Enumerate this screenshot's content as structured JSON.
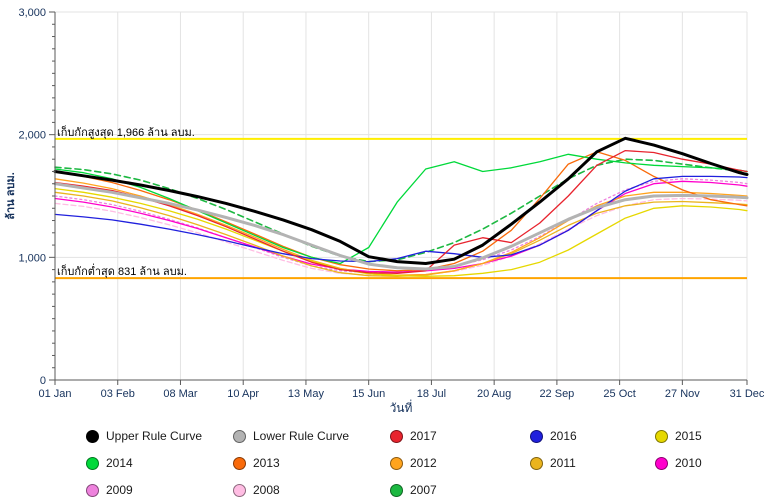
{
  "axis": {
    "tick_color": "#16325c",
    "title_color": "#16325c",
    "grid_color": "#e3e3e3",
    "axis_line_color": "#5a5a5a",
    "annotation_color": "#000000",
    "background": "#ffffff"
  },
  "chart_data": {
    "type": "line",
    "title": "",
    "xlabel": "วันที่",
    "ylabel": "ล้าน ลบม.",
    "ylim": [
      0,
      3000
    ],
    "grid": true,
    "legend_position": "bottom",
    "y_ticks": [
      {
        "v": 0,
        "label": "0"
      },
      {
        "v": 1000,
        "label": "1,000"
      },
      {
        "v": 2000,
        "label": "2,000"
      },
      {
        "v": 3000,
        "label": "3,000"
      }
    ],
    "x_tick_labels": [
      "01 Jan",
      "03 Feb",
      "08 Mar",
      "10 Apr",
      "13 May",
      "15 Jun",
      "18 Jul",
      "20 Aug",
      "22 Sep",
      "25 Oct",
      "27 Nov",
      "31 Dec"
    ],
    "x_tick_days": [
      1,
      34,
      67,
      100,
      133,
      166,
      199,
      232,
      265,
      298,
      331,
      365
    ],
    "reference_lines": [
      {
        "name": "max-storage",
        "value": 1966,
        "color": "#ffee00",
        "label": "เก็บกักสูงสุด 1,966 ล้าน ลบม."
      },
      {
        "name": "min-storage",
        "value": 831,
        "color": "#ffa400",
        "label": "เก็บกักต่ำสุด 831 ล้าน ลบม."
      }
    ],
    "x_days": [
      1,
      16,
      31,
      46,
      61,
      76,
      91,
      106,
      121,
      136,
      151,
      166,
      181,
      196,
      211,
      226,
      241,
      256,
      271,
      286,
      301,
      316,
      331,
      346,
      361,
      365
    ],
    "series": [
      {
        "name": "Upper Rule Curve",
        "color": "#000000",
        "width": 3,
        "dash": "",
        "values": [
          1700,
          1665,
          1630,
          1590,
          1545,
          1495,
          1440,
          1375,
          1305,
          1225,
          1130,
          1005,
          965,
          950,
          985,
          1100,
          1270,
          1450,
          1640,
          1860,
          1970,
          1915,
          1845,
          1765,
          1690,
          1675
        ]
      },
      {
        "name": "Lower Rule Curve",
        "color": "#b3b3b3",
        "width": 3,
        "dash": "",
        "values": [
          1600,
          1565,
          1530,
          1485,
          1440,
          1385,
          1325,
          1260,
          1185,
          1100,
          1015,
          945,
          915,
          905,
          925,
          995,
          1090,
          1200,
          1310,
          1405,
          1470,
          1500,
          1505,
          1500,
          1490,
          1485
        ]
      },
      {
        "name": "2017",
        "color": "#e8242e",
        "width": 1.3,
        "dash": "",
        "values": [
          1610,
          1580,
          1545,
          1490,
          1420,
          1340,
          1250,
          1150,
          1050,
          960,
          900,
          875,
          870,
          890,
          1100,
          1160,
          1120,
          1280,
          1500,
          1750,
          1870,
          1855,
          1800,
          1760,
          1710,
          1700
        ]
      },
      {
        "name": "2016",
        "color": "#2020dd",
        "width": 1.3,
        "dash": "",
        "values": [
          1350,
          1330,
          1305,
          1270,
          1230,
          1185,
          1135,
          1080,
          1030,
          990,
          970,
          965,
          990,
          1050,
          1030,
          1000,
          1020,
          1100,
          1220,
          1380,
          1540,
          1640,
          1660,
          1660,
          1655,
          1650
        ]
      },
      {
        "name": "2015",
        "color": "#e6d800",
        "width": 1.3,
        "dash": "",
        "values": [
          1560,
          1530,
          1490,
          1440,
          1380,
          1310,
          1230,
          1140,
          1050,
          970,
          905,
          865,
          850,
          845,
          850,
          870,
          900,
          960,
          1060,
          1190,
          1320,
          1400,
          1420,
          1410,
          1390,
          1380
        ]
      },
      {
        "name": "2014",
        "color": "#00d93a",
        "width": 1.3,
        "dash": "",
        "values": [
          1720,
          1690,
          1640,
          1570,
          1480,
          1380,
          1280,
          1180,
          1080,
          1000,
          950,
          1080,
          1450,
          1720,
          1780,
          1700,
          1730,
          1780,
          1840,
          1800,
          1770,
          1750,
          1740,
          1730,
          1710,
          1700
        ]
      },
      {
        "name": "2013",
        "color": "#f96a0a",
        "width": 1.3,
        "dash": "",
        "values": [
          1700,
          1660,
          1610,
          1545,
          1470,
          1385,
          1290,
          1190,
          1090,
          1000,
          940,
          905,
          890,
          900,
          950,
          1050,
          1220,
          1480,
          1760,
          1860,
          1790,
          1660,
          1550,
          1470,
          1430,
          1420
        ]
      },
      {
        "name": "2012",
        "color": "#ffa41e",
        "width": 1.3,
        "dash": "",
        "values": [
          1640,
          1605,
          1560,
          1500,
          1430,
          1350,
          1260,
          1165,
          1065,
          975,
          910,
          870,
          855,
          860,
          890,
          950,
          1040,
          1160,
          1300,
          1420,
          1500,
          1530,
          1530,
          1520,
          1505,
          1500
        ]
      },
      {
        "name": "2011",
        "color": "#eab41e",
        "width": 1.3,
        "dash": "",
        "values": [
          1530,
          1500,
          1460,
          1405,
          1340,
          1265,
          1185,
          1100,
          1010,
          930,
          875,
          850,
          845,
          855,
          890,
          950,
          1030,
          1140,
          1260,
          1360,
          1420,
          1450,
          1455,
          1445,
          1435,
          1430
        ]
      },
      {
        "name": "2010",
        "color": "#ff00cc",
        "width": 1.3,
        "dash": "",
        "values": [
          1480,
          1450,
          1410,
          1360,
          1300,
          1235,
          1160,
          1085,
          1010,
          945,
          905,
          885,
          880,
          890,
          910,
          950,
          1010,
          1100,
          1220,
          1380,
          1520,
          1600,
          1620,
          1610,
          1590,
          1580
        ]
      },
      {
        "name": "2009",
        "color": "#ee82dd",
        "width": 1.3,
        "dash": "2,3",
        "values": [
          1500,
          1470,
          1430,
          1375,
          1310,
          1240,
          1160,
          1080,
          1000,
          930,
          890,
          875,
          880,
          900,
          930,
          980,
          1060,
          1170,
          1300,
          1440,
          1550,
          1620,
          1640,
          1630,
          1610,
          1600
        ]
      },
      {
        "name": "2008",
        "color": "#ffbde3",
        "width": 1.3,
        "dash": "5,3",
        "values": [
          1440,
          1415,
          1375,
          1325,
          1265,
          1200,
          1125,
          1050,
          975,
          910,
          870,
          855,
          850,
          860,
          885,
          935,
          1010,
          1110,
          1230,
          1340,
          1420,
          1470,
          1480,
          1475,
          1465,
          1460
        ]
      },
      {
        "name": "2007",
        "color": "#1cb841",
        "width": 1.6,
        "dash": "6,4",
        "values": [
          1735,
          1715,
          1680,
          1630,
          1560,
          1480,
          1390,
          1290,
          1190,
          1090,
          1010,
          965,
          980,
          1040,
          1120,
          1230,
          1360,
          1500,
          1640,
          1750,
          1800,
          1790,
          1760,
          1730,
          1705,
          1700
        ]
      }
    ]
  }
}
